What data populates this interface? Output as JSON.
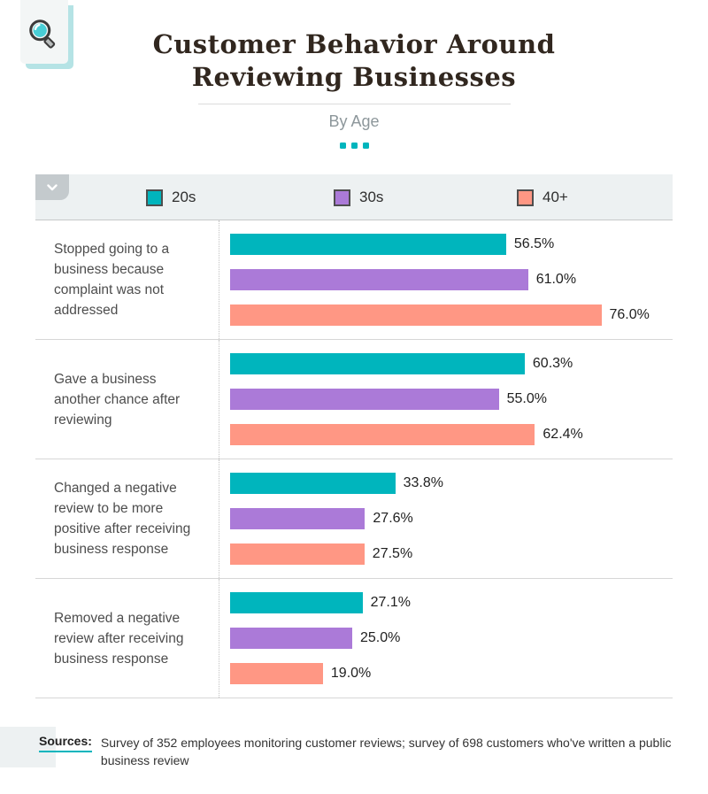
{
  "header": {
    "title_line1": "Customer Behavior Around",
    "title_line2": "Reviewing Businesses",
    "subtitle": "By Age"
  },
  "accent_color": "#00b5bd",
  "chart_data": {
    "type": "bar",
    "orientation": "horizontal",
    "title": "Customer Behavior Around Reviewing Businesses",
    "subtitle": "By Age",
    "legend_position": "top",
    "grid": false,
    "xlim": [
      0,
      90
    ],
    "value_suffix": "%",
    "categories": [
      "Stopped going to a business because complaint was not addressed",
      "Gave a business another chance after reviewing",
      "Changed a negative review to be more positive after receiving business response",
      "Removed a negative review after receiving business response"
    ],
    "series": [
      {
        "name": "20s",
        "color": "#00b5bd",
        "values": [
          56.5,
          60.3,
          33.8,
          27.1
        ]
      },
      {
        "name": "30s",
        "color": "#ab7ad8",
        "values": [
          61.0,
          55.0,
          27.6,
          25.0
        ]
      },
      {
        "name": "40+",
        "color": "#ff9784",
        "values": [
          76.0,
          62.4,
          27.5,
          19.0
        ]
      }
    ]
  },
  "footer": {
    "sources_label": "Sources:",
    "sources_text": "Survey of 352 employees monitoring customer reviews; survey of 698 customers who've written a public business review"
  }
}
